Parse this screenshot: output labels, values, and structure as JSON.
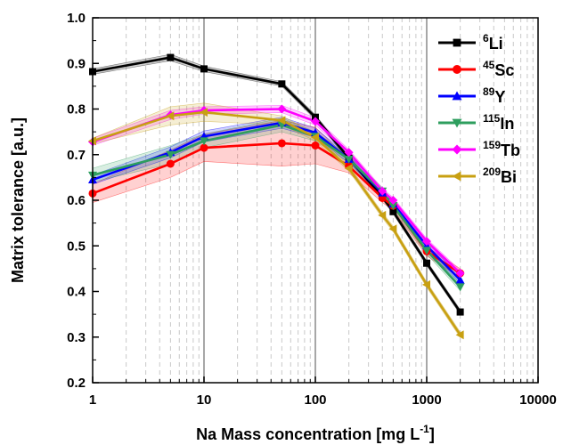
{
  "chart_data": {
    "type": "line",
    "xscale": "log",
    "xlim": [
      1,
      10000
    ],
    "ylim": [
      0.2,
      1.0
    ],
    "xlabel_main": "Na Mass concentration [mg L",
    "xlabel_sup": "-1",
    "xlabel_end": "]",
    "ylabel": "Matrix tolerance [a.u.]",
    "x_tick_labels": [
      "1",
      "10",
      "100",
      "1000",
      "10000"
    ],
    "y_tick_labels": [
      "0.2",
      "0.3",
      "0.4",
      "0.5",
      "0.6",
      "0.7",
      "0.8",
      "0.9",
      "1.0"
    ],
    "x_ticks": [
      1,
      10,
      100,
      1000,
      10000
    ],
    "y_ticks": [
      0.2,
      0.3,
      0.4,
      0.5,
      0.6,
      0.7,
      0.8,
      0.9,
      1.0
    ],
    "grid": {
      "major_x": true,
      "minor_x": true,
      "y": false
    },
    "legend_position": "top-right",
    "x": [
      1,
      5,
      10,
      50,
      100,
      200,
      400,
      500,
      1000,
      2000
    ],
    "series": [
      {
        "name_sup": "6",
        "name_main": "Li",
        "color": "#000000",
        "marker": "square",
        "values": [
          0.882,
          0.913,
          0.888,
          0.855,
          0.782,
          0.692,
          0.607,
          0.575,
          0.462,
          0.355
        ],
        "band": [
          0.006,
          0.007,
          0.006,
          0.005,
          0.005,
          0.005,
          0.005,
          0.005,
          0.005,
          0.005
        ]
      },
      {
        "name_sup": "45",
        "name_main": "Sc",
        "color": "#ff0000",
        "marker": "circle",
        "values": [
          0.615,
          0.68,
          0.715,
          0.725,
          0.72,
          0.675,
          0.605,
          0.588,
          0.488,
          0.44
        ],
        "band": [
          0.02,
          0.03,
          0.03,
          0.05,
          0.04,
          0.015,
          0.01,
          0.01,
          0.01,
          0.01
        ]
      },
      {
        "name_sup": "89",
        "name_main": "Y",
        "color": "#0000ff",
        "marker": "triangle-up",
        "values": [
          0.645,
          0.705,
          0.74,
          0.77,
          0.748,
          0.69,
          0.616,
          0.592,
          0.5,
          0.425
        ],
        "band": [
          0.01,
          0.012,
          0.012,
          0.012,
          0.01,
          0.008,
          0.008,
          0.008,
          0.008,
          0.008
        ]
      },
      {
        "name_sup": "115",
        "name_main": "In",
        "color": "#2e9e5e",
        "marker": "triangle-down",
        "values": [
          0.655,
          0.7,
          0.73,
          0.765,
          0.74,
          0.69,
          0.62,
          0.588,
          0.49,
          0.41
        ],
        "band": [
          0.015,
          0.02,
          0.015,
          0.015,
          0.01,
          0.008,
          0.008,
          0.008,
          0.008,
          0.008
        ]
      },
      {
        "name_sup": "159",
        "name_main": "Tb",
        "color": "#ff00ff",
        "marker": "diamond",
        "values": [
          0.728,
          0.787,
          0.797,
          0.8,
          0.773,
          0.705,
          0.62,
          0.6,
          0.51,
          0.44
        ],
        "band": [
          0.008,
          0.01,
          0.008,
          0.008,
          0.008,
          0.006,
          0.006,
          0.006,
          0.006,
          0.006
        ]
      },
      {
        "name_sup": "209",
        "name_main": "Bi",
        "color": "#c8a012",
        "marker": "triangle-left",
        "values": [
          0.73,
          0.785,
          0.793,
          0.775,
          0.738,
          0.67,
          0.567,
          0.537,
          0.415,
          0.305
        ],
        "band": [
          0.006,
          0.02,
          0.02,
          0.01,
          0.008,
          0.006,
          0.006,
          0.006,
          0.006,
          0.006
        ]
      }
    ]
  }
}
